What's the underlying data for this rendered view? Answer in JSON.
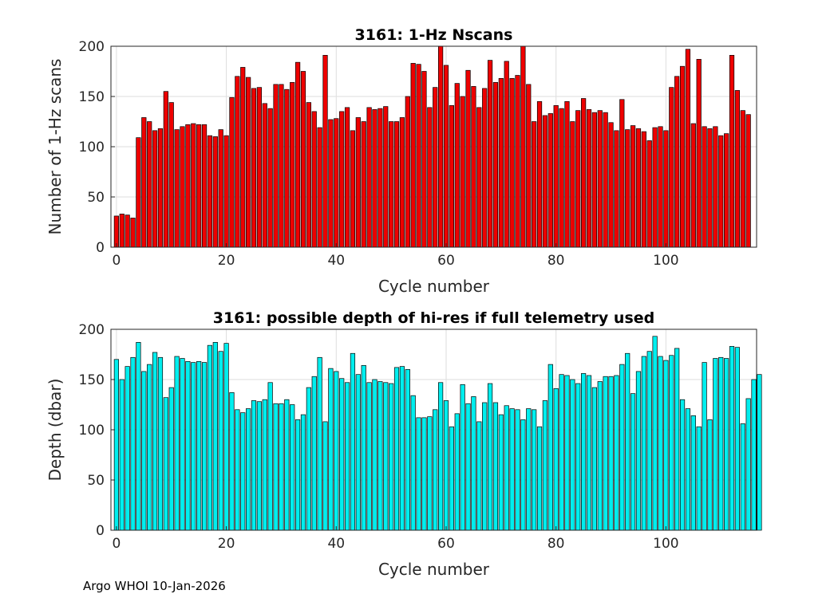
{
  "footer": "Argo WHOI 10-Jan-2026",
  "chart_data": [
    {
      "type": "bar",
      "title": "3161: 1-Hz Nscans",
      "xlabel": "Cycle number",
      "ylabel": "Number of 1-Hz scans",
      "color": "#ee0000",
      "xlim": [
        -1,
        116.5
      ],
      "ylim": [
        0,
        200
      ],
      "xticks": [
        0,
        20,
        40,
        60,
        80,
        100
      ],
      "yticks": [
        0,
        50,
        100,
        150,
        200
      ],
      "grid": true,
      "x_start": 0,
      "values": [
        31,
        33,
        32,
        29,
        109,
        129,
        125,
        116,
        118,
        155,
        144,
        117,
        120,
        122,
        123,
        122,
        122,
        111,
        110,
        117,
        111,
        149,
        170,
        179,
        169,
        158,
        159,
        143,
        138,
        162,
        162,
        157,
        164,
        184,
        175,
        144,
        135,
        119,
        191,
        127,
        128,
        135,
        139,
        116,
        129,
        125,
        139,
        137,
        138,
        140,
        125,
        125,
        129,
        150,
        183,
        182,
        175,
        139,
        159,
        200,
        181,
        141,
        163,
        150,
        176,
        160,
        139,
        158,
        186,
        164,
        168,
        185,
        168,
        171,
        200,
        162,
        125,
        145,
        131,
        133,
        141,
        138,
        145,
        125,
        136,
        148,
        137,
        134,
        136,
        134,
        124,
        116,
        147,
        117,
        121,
        118,
        115,
        106,
        119,
        120,
        116,
        159,
        170,
        180,
        197,
        123,
        187,
        120,
        118,
        120,
        111,
        113,
        191,
        156,
        136,
        132
      ]
    },
    {
      "type": "bar",
      "title": "3161: possible depth of hi-res if full telemetry used",
      "xlabel": "Cycle number",
      "ylabel": "Depth (dbar)",
      "color": "#00eeee",
      "xlim": [
        -1,
        116.5
      ],
      "ylim": [
        0,
        200
      ],
      "xticks": [
        0,
        20,
        40,
        60,
        80,
        100
      ],
      "yticks": [
        0,
        50,
        100,
        150,
        200
      ],
      "grid": true,
      "x_start": 0,
      "values": [
        170,
        150,
        163,
        172,
        187,
        158,
        165,
        177,
        172,
        132,
        142,
        173,
        171,
        168,
        167,
        168,
        167,
        184,
        187,
        178,
        186,
        137,
        120,
        117,
        121,
        129,
        128,
        130,
        147,
        126,
        126,
        130,
        125,
        110,
        115,
        142,
        153,
        172,
        108,
        161,
        158,
        151,
        147,
        176,
        155,
        164,
        147,
        150,
        148,
        147,
        146,
        162,
        163,
        160,
        134,
        112,
        112,
        113,
        120,
        147,
        129,
        103,
        116,
        145,
        126,
        133,
        108,
        127,
        146,
        127,
        115,
        124,
        121,
        120,
        110,
        121,
        120,
        103,
        129,
        165,
        141,
        155,
        154,
        150,
        146,
        156,
        154,
        142,
        148,
        153,
        153,
        154,
        165,
        176,
        136,
        158,
        173,
        178,
        193,
        173,
        169,
        174,
        181,
        130,
        121,
        114,
        103,
        167,
        110,
        171,
        172,
        171,
        183,
        182,
        106,
        131,
        150,
        155
      ]
    }
  ]
}
